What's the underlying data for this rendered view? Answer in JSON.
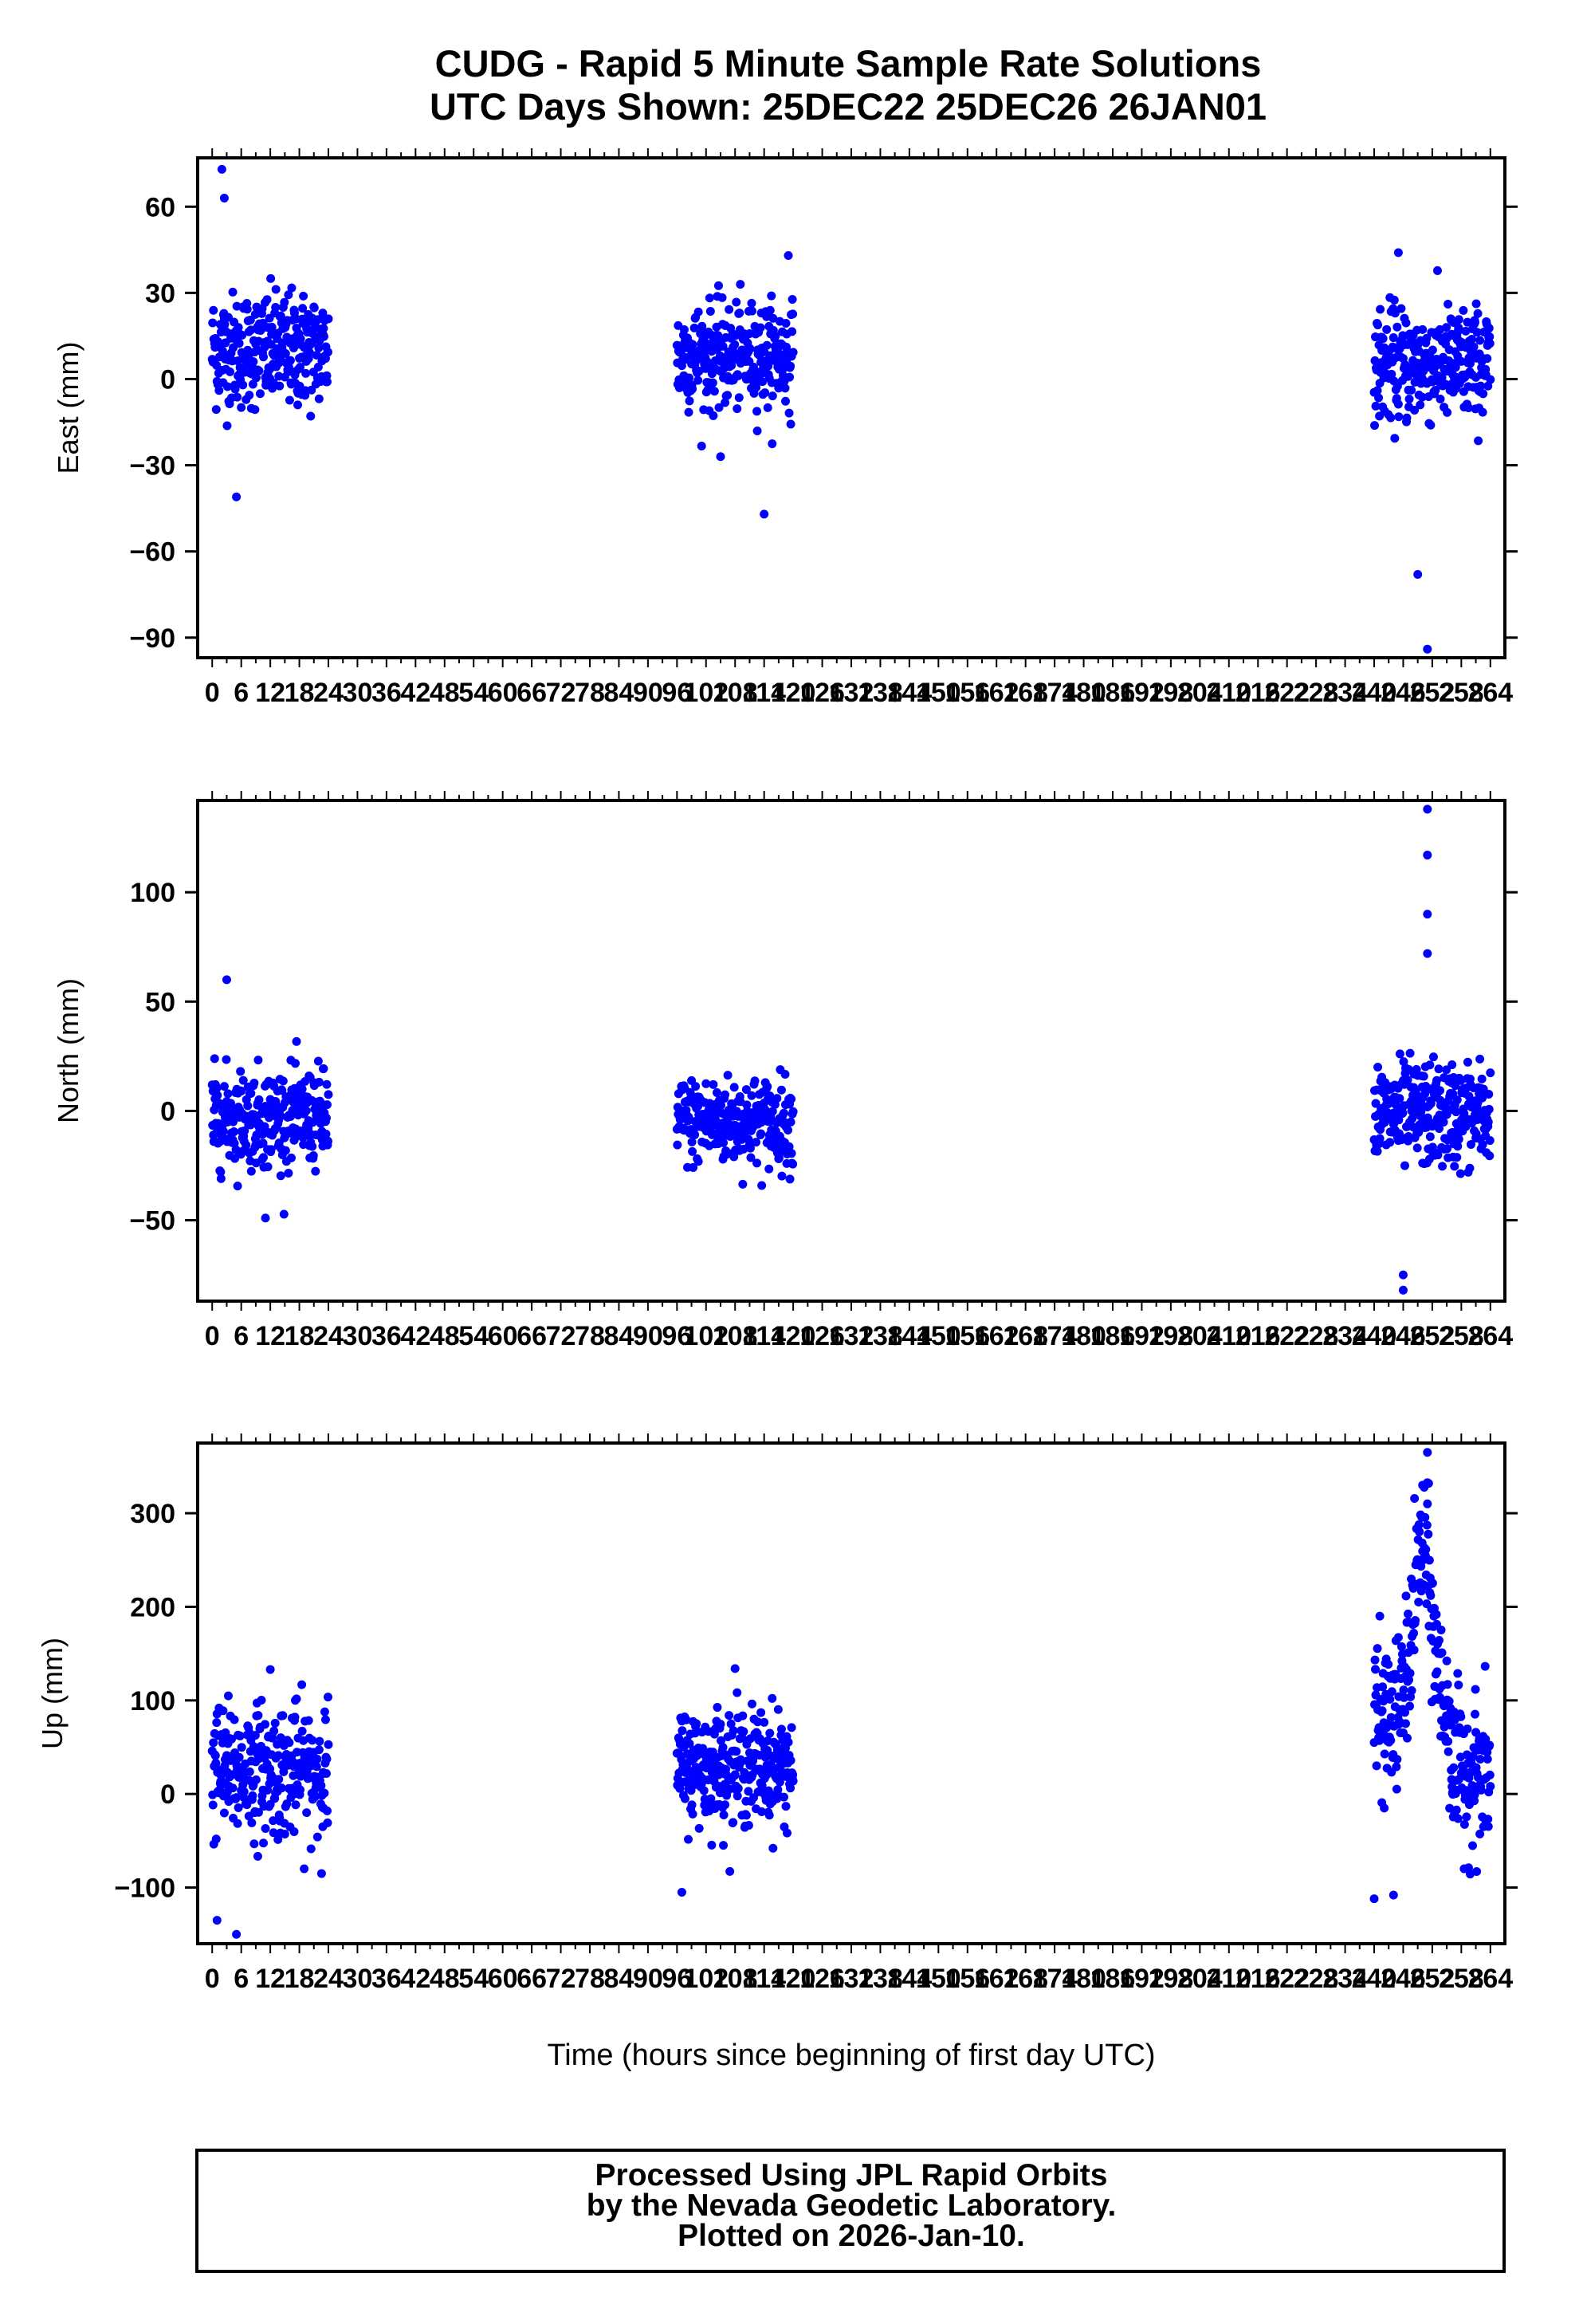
{
  "title": {
    "line1": "CUDG - Rapid 5 Minute Sample Rate Solutions",
    "line2": "UTC Days Shown:  25DEC22 25DEC26 26JAN01"
  },
  "footer": {
    "line1": "Processed Using JPL Rapid Orbits",
    "line2": "by the Nevada Geodetic Laboratory.",
    "line3": "Plotted on 2026-Jan-10."
  },
  "colors": {
    "points": "#0000ff",
    "axes": "#000000",
    "background": "#ffffff"
  },
  "chart_data": [
    {
      "type": "scatter",
      "name": "east",
      "ylabel": "East (mm)",
      "xlabel": "",
      "xlim": [
        -3,
        267
      ],
      "ylim": [
        -97,
        77
      ],
      "yticks": [
        -90,
        -60,
        -30,
        0,
        30,
        60
      ],
      "xticks": [
        0,
        6,
        12,
        18,
        24,
        30,
        36,
        42,
        48,
        54,
        60,
        66,
        72,
        78,
        84,
        90,
        96,
        102,
        108,
        114,
        120,
        126,
        132,
        138,
        144,
        150,
        156,
        162,
        168,
        174,
        180,
        186,
        192,
        198,
        204,
        210,
        216,
        222,
        228,
        234,
        240,
        246,
        252,
        258,
        264
      ],
      "segments": [
        {
          "x_start": 0,
          "x_end": 24,
          "center": 10,
          "spread": 10
        },
        {
          "x_start": 96,
          "x_end": 120,
          "center": 8,
          "spread": 9
        },
        {
          "x_start": 240,
          "x_end": 264,
          "center": 5,
          "spread": 10
        }
      ],
      "notable_points": [
        {
          "x": 2,
          "y": 73
        },
        {
          "x": 2.5,
          "y": 63
        },
        {
          "x": 5,
          "y": -41
        },
        {
          "x": 105,
          "y": -27
        },
        {
          "x": 114,
          "y": -47
        },
        {
          "x": 119,
          "y": 43
        },
        {
          "x": 245,
          "y": 44
        },
        {
          "x": 249,
          "y": -68
        },
        {
          "x": 251,
          "y": -94
        }
      ],
      "grid": false
    },
    {
      "type": "scatter",
      "name": "north",
      "ylabel": "North (mm)",
      "xlabel": "",
      "xlim": [
        -3,
        267
      ],
      "ylim": [
        -87,
        142
      ],
      "yticks": [
        -50,
        0,
        50,
        100
      ],
      "xticks": [
        0,
        6,
        12,
        18,
        24,
        30,
        36,
        42,
        48,
        54,
        60,
        66,
        72,
        78,
        84,
        90,
        96,
        102,
        108,
        114,
        120,
        126,
        132,
        138,
        144,
        150,
        156,
        162,
        168,
        174,
        180,
        186,
        192,
        198,
        204,
        210,
        216,
        222,
        228,
        234,
        240,
        246,
        252,
        258,
        264
      ],
      "segments": [
        {
          "x_start": 0,
          "x_end": 24,
          "center": -3,
          "spread": 11
        },
        {
          "x_start": 96,
          "x_end": 120,
          "center": -5,
          "spread": 10
        },
        {
          "x_start": 240,
          "x_end": 264,
          "center": -2,
          "spread": 12
        }
      ],
      "notable_points": [
        {
          "x": 3,
          "y": 60
        },
        {
          "x": 11,
          "y": -49
        },
        {
          "x": 251,
          "y": 138
        },
        {
          "x": 251,
          "y": 117
        },
        {
          "x": 251,
          "y": 90
        },
        {
          "x": 251,
          "y": 72
        },
        {
          "x": 246,
          "y": -75
        },
        {
          "x": 246,
          "y": -82
        }
      ],
      "grid": false
    },
    {
      "type": "scatter",
      "name": "up",
      "ylabel": "Up (mm)",
      "xlabel": "Time (hours since beginning of first day UTC)",
      "xlim": [
        -3,
        267
      ],
      "ylim": [
        -160,
        375
      ],
      "yticks": [
        -100,
        0,
        100,
        200,
        300
      ],
      "xticks": [
        0,
        6,
        12,
        18,
        24,
        30,
        36,
        42,
        48,
        54,
        60,
        66,
        72,
        78,
        84,
        90,
        96,
        102,
        108,
        114,
        120,
        126,
        132,
        138,
        144,
        150,
        156,
        162,
        168,
        174,
        180,
        186,
        192,
        198,
        204,
        210,
        216,
        222,
        228,
        234,
        240,
        246,
        252,
        258,
        264
      ],
      "segments": [
        {
          "x_start": 0,
          "x_end": 24,
          "center": 25,
          "spread": 35
        },
        {
          "x_start": 96,
          "x_end": 120,
          "center": 30,
          "spread": 30
        },
        {
          "x_start": 240,
          "x_end": 264,
          "center": 80,
          "spread": 40
        }
      ],
      "notable_points": [
        {
          "x": 1,
          "y": -135
        },
        {
          "x": 5,
          "y": -150
        },
        {
          "x": 12,
          "y": 133
        },
        {
          "x": 97,
          "y": -105
        },
        {
          "x": 108,
          "y": 134
        },
        {
          "x": 240,
          "y": -112
        },
        {
          "x": 244,
          "y": -108
        },
        {
          "x": 251,
          "y": 365
        },
        {
          "x": 250,
          "y": 330
        },
        {
          "x": 251,
          "y": 310
        }
      ],
      "grid": false
    }
  ]
}
